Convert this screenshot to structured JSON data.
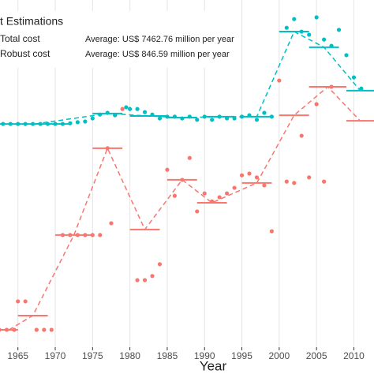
{
  "chart_data": {
    "type": "scatter",
    "legend_title": "t Estimations",
    "x_label": "Year",
    "annotations": [
      "Average: US$ 7462.76 million per year",
      "Average: US$ 846.59 million per year"
    ],
    "xlim": [
      1962.6,
      2012.7
    ],
    "ylim": [
      0,
      100
    ],
    "xticks": [
      1965,
      1970,
      1975,
      1980,
      1985,
      1990,
      1995,
      2000,
      2005,
      2010
    ],
    "grid": true,
    "series": [
      {
        "name": "Total cost",
        "color": "#00BFC4",
        "x": [
          1963,
          1964,
          1965,
          1966,
          1967,
          1968,
          1969,
          1970,
          1971,
          1972,
          1973,
          1974,
          1975,
          1976,
          1977,
          1978,
          1979.5,
          1980,
          1981,
          1982,
          1983,
          1984,
          1985,
          1986,
          1987,
          1988,
          1989,
          1990,
          1991,
          1992,
          1993,
          1994,
          1995,
          1996,
          1997,
          1998,
          1999,
          2001,
          2002,
          2003,
          2004,
          2005,
          2006,
          2007,
          2008,
          2009,
          2010,
          2011
        ],
        "values": [
          64.3,
          64.3,
          64.3,
          64.3,
          64.3,
          64.3,
          64.3,
          64.3,
          64.3,
          64.5,
          64.8,
          65,
          65.9,
          67,
          67.5,
          66.8,
          69.1,
          68.6,
          68.6,
          67.7,
          67,
          65.9,
          66.4,
          66.4,
          65.9,
          66.4,
          65.5,
          66.4,
          65.5,
          66.4,
          65.9,
          65.9,
          66.4,
          66.8,
          65.5,
          67.5,
          66.4,
          92,
          94.5,
          90.9,
          90,
          95,
          88.6,
          86.8,
          91.4,
          84.1,
          77.7,
          74.5
        ],
        "segments": {
          "start": [
            1962.6,
            1975,
            1980,
            1985,
            1990,
            1995,
            2000,
            2004,
            2009
          ],
          "end": [
            1972,
            1979,
            1985,
            1989,
            1994,
            1999,
            2004,
            2008,
            2012.7
          ],
          "values": [
            64.3,
            67.3,
            66.6,
            66.1,
            66.4,
            66.4,
            90.9,
            86.4,
            73.9
          ]
        }
      },
      {
        "name": "Robust cost",
        "color": "#F8766D",
        "x": [
          1962.5,
          1963.5,
          1964.5,
          1965,
          1966,
          1967.5,
          1968.5,
          1969.5,
          1971,
          1972,
          1973,
          1974,
          1975,
          1976,
          1977,
          1977.5,
          1979,
          1981,
          1982,
          1983,
          1984,
          1985,
          1986,
          1987,
          1988,
          1989,
          1990,
          1991,
          1992,
          1993,
          1994,
          1995,
          1996,
          1997,
          1998,
          1999,
          2000,
          2001,
          2002,
          2003,
          2004,
          2005,
          2006,
          2007
        ],
        "values": [
          5,
          5,
          5,
          13.2,
          13.2,
          5,
          5,
          5,
          32.3,
          32.3,
          32.3,
          32.3,
          32.3,
          32.3,
          57.3,
          35.7,
          68.6,
          19.3,
          19.3,
          20.5,
          23.9,
          51.1,
          43.6,
          48.2,
          54.5,
          39.1,
          44.3,
          42,
          43.2,
          44.3,
          45.9,
          49.5,
          50,
          48.9,
          46.6,
          33.4,
          76.8,
          47.7,
          47.3,
          60.9,
          48.9,
          70,
          47.7,
          75
        ],
        "segments": {
          "start": [
            1962.6,
            1965,
            1970,
            1975,
            1980,
            1985,
            1989,
            1995,
            2000,
            2004,
            2009
          ],
          "end": [
            1965,
            1969,
            1975,
            1979,
            1984,
            1989,
            1993,
            1999,
            2004,
            2009,
            2012.7
          ],
          "values": [
            5,
            9.1,
            32.3,
            57.3,
            33.9,
            48.2,
            41.6,
            47.3,
            66.8,
            75,
            65.2
          ]
        }
      }
    ]
  }
}
